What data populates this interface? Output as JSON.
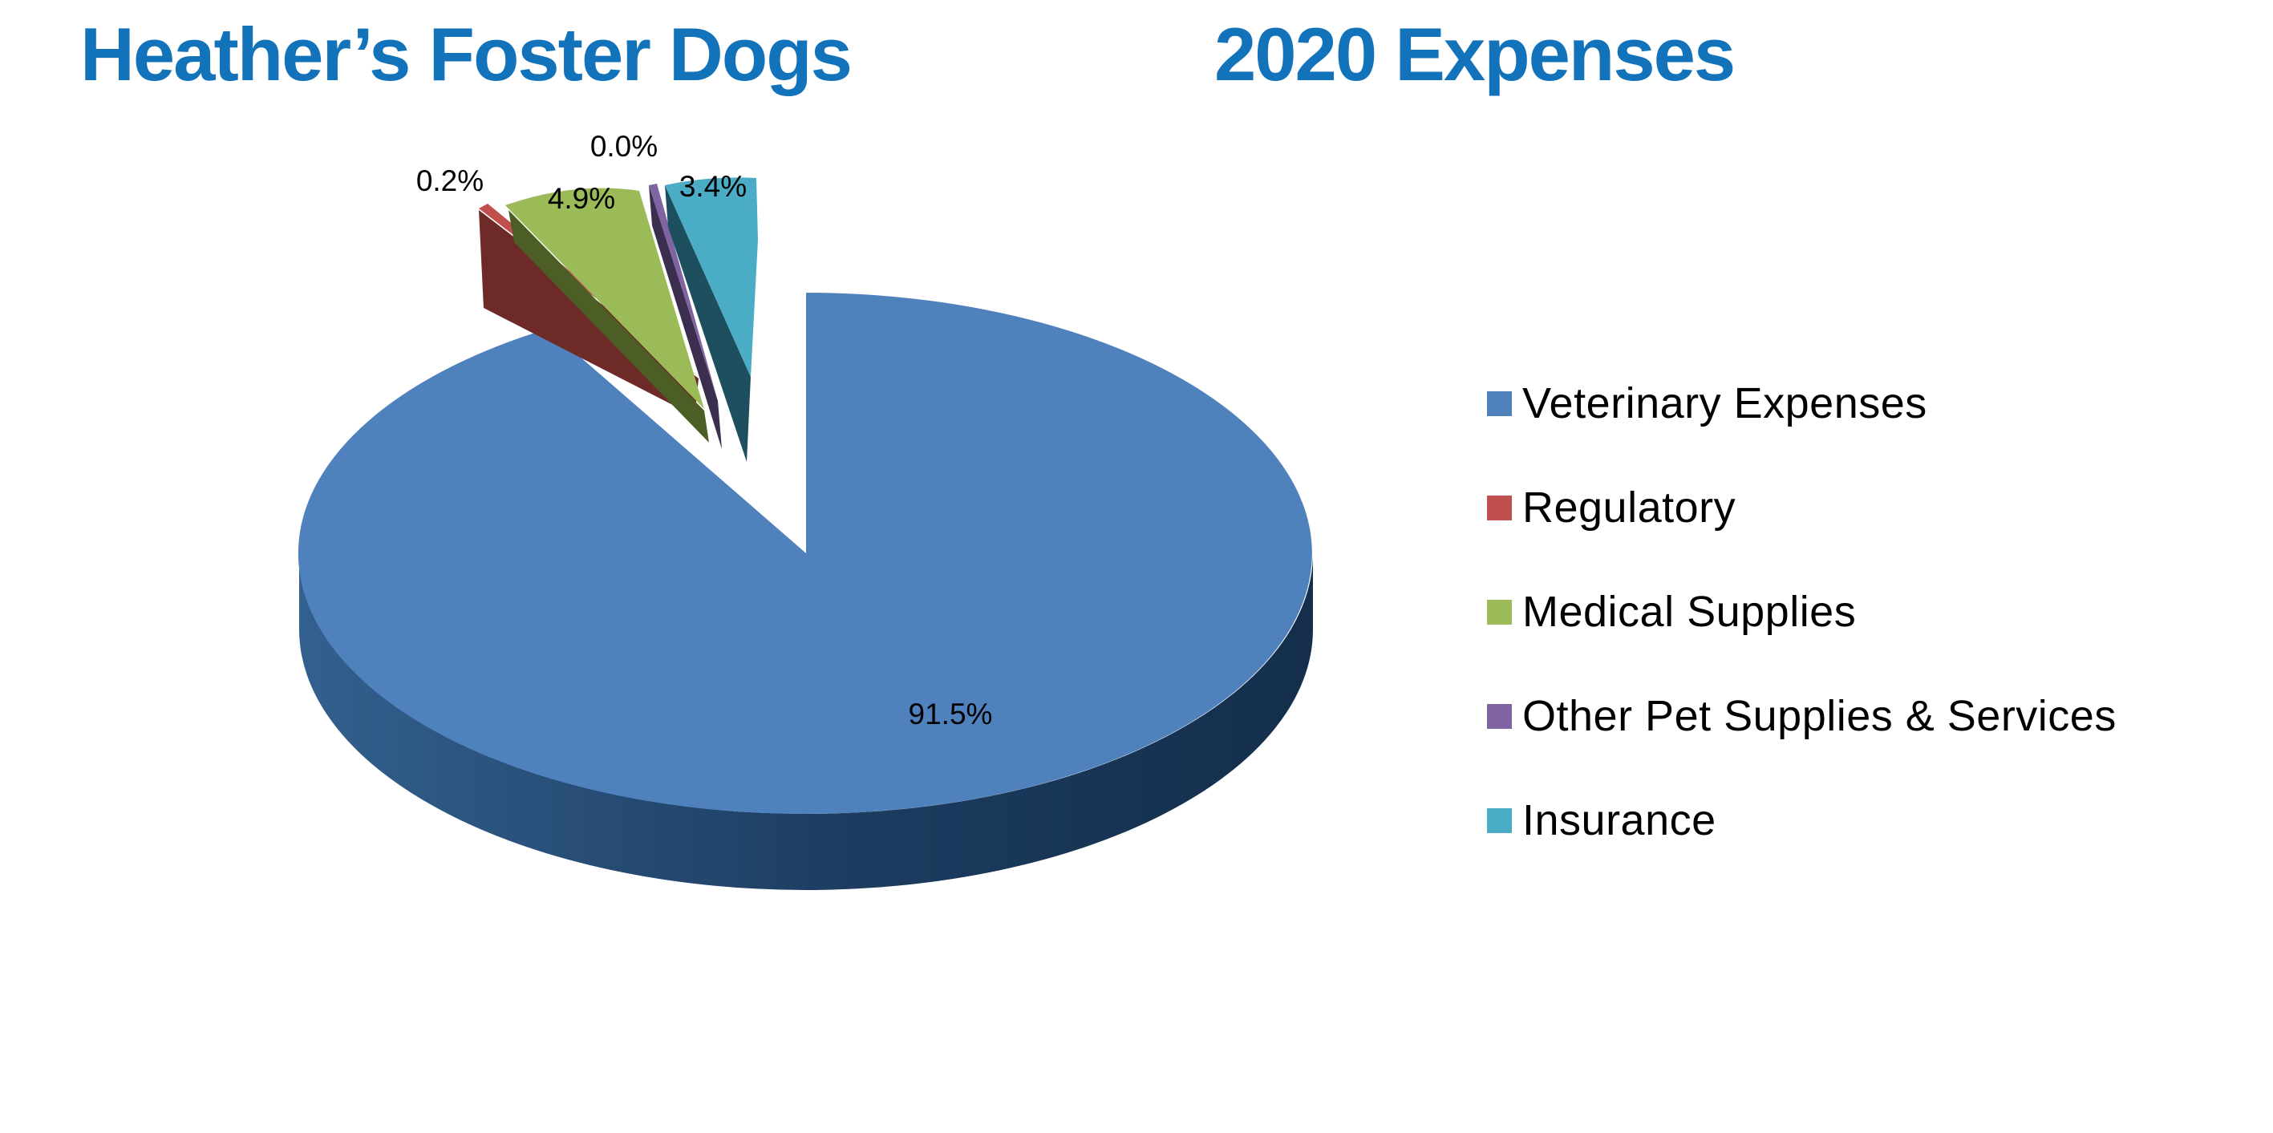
{
  "title": {
    "left": "Heather’s Foster Dogs",
    "right": "2020 Expenses",
    "color": "#1273BB"
  },
  "chart_data": {
    "type": "pie",
    "title": "Heather’s Foster Dogs — 2020 Expenses",
    "unit": "percent",
    "effect_3d": true,
    "exploded_slices": [
      "Regulatory",
      "Medical Supplies",
      "Other Pet Supplies & Services",
      "Insurance"
    ],
    "legend_position": "right",
    "slices": [
      {
        "name": "Veterinary Expenses",
        "value": 91.5,
        "pct_label": "91.5%",
        "color": "#4F81BD",
        "side_color": "#1E3C5F",
        "exploded": false
      },
      {
        "name": "Regulatory",
        "value": 0.2,
        "pct_label": "0.2%",
        "color": "#C0504D",
        "side_color": "#6E2A27",
        "exploded": true
      },
      {
        "name": "Medical Supplies",
        "value": 4.9,
        "pct_label": "4.9%",
        "color": "#9BBB59",
        "side_color": "#4C5D26",
        "exploded": true
      },
      {
        "name": "Other Pet Supplies & Services",
        "value": 0.0,
        "pct_label": "0.0%",
        "color": "#8064A2",
        "side_color": "#3B2E4E",
        "exploded": true
      },
      {
        "name": "Insurance",
        "value": 3.4,
        "pct_label": "3.4%",
        "color": "#4BACC6",
        "side_color": "#1E4F5E",
        "exploded": true
      }
    ]
  }
}
